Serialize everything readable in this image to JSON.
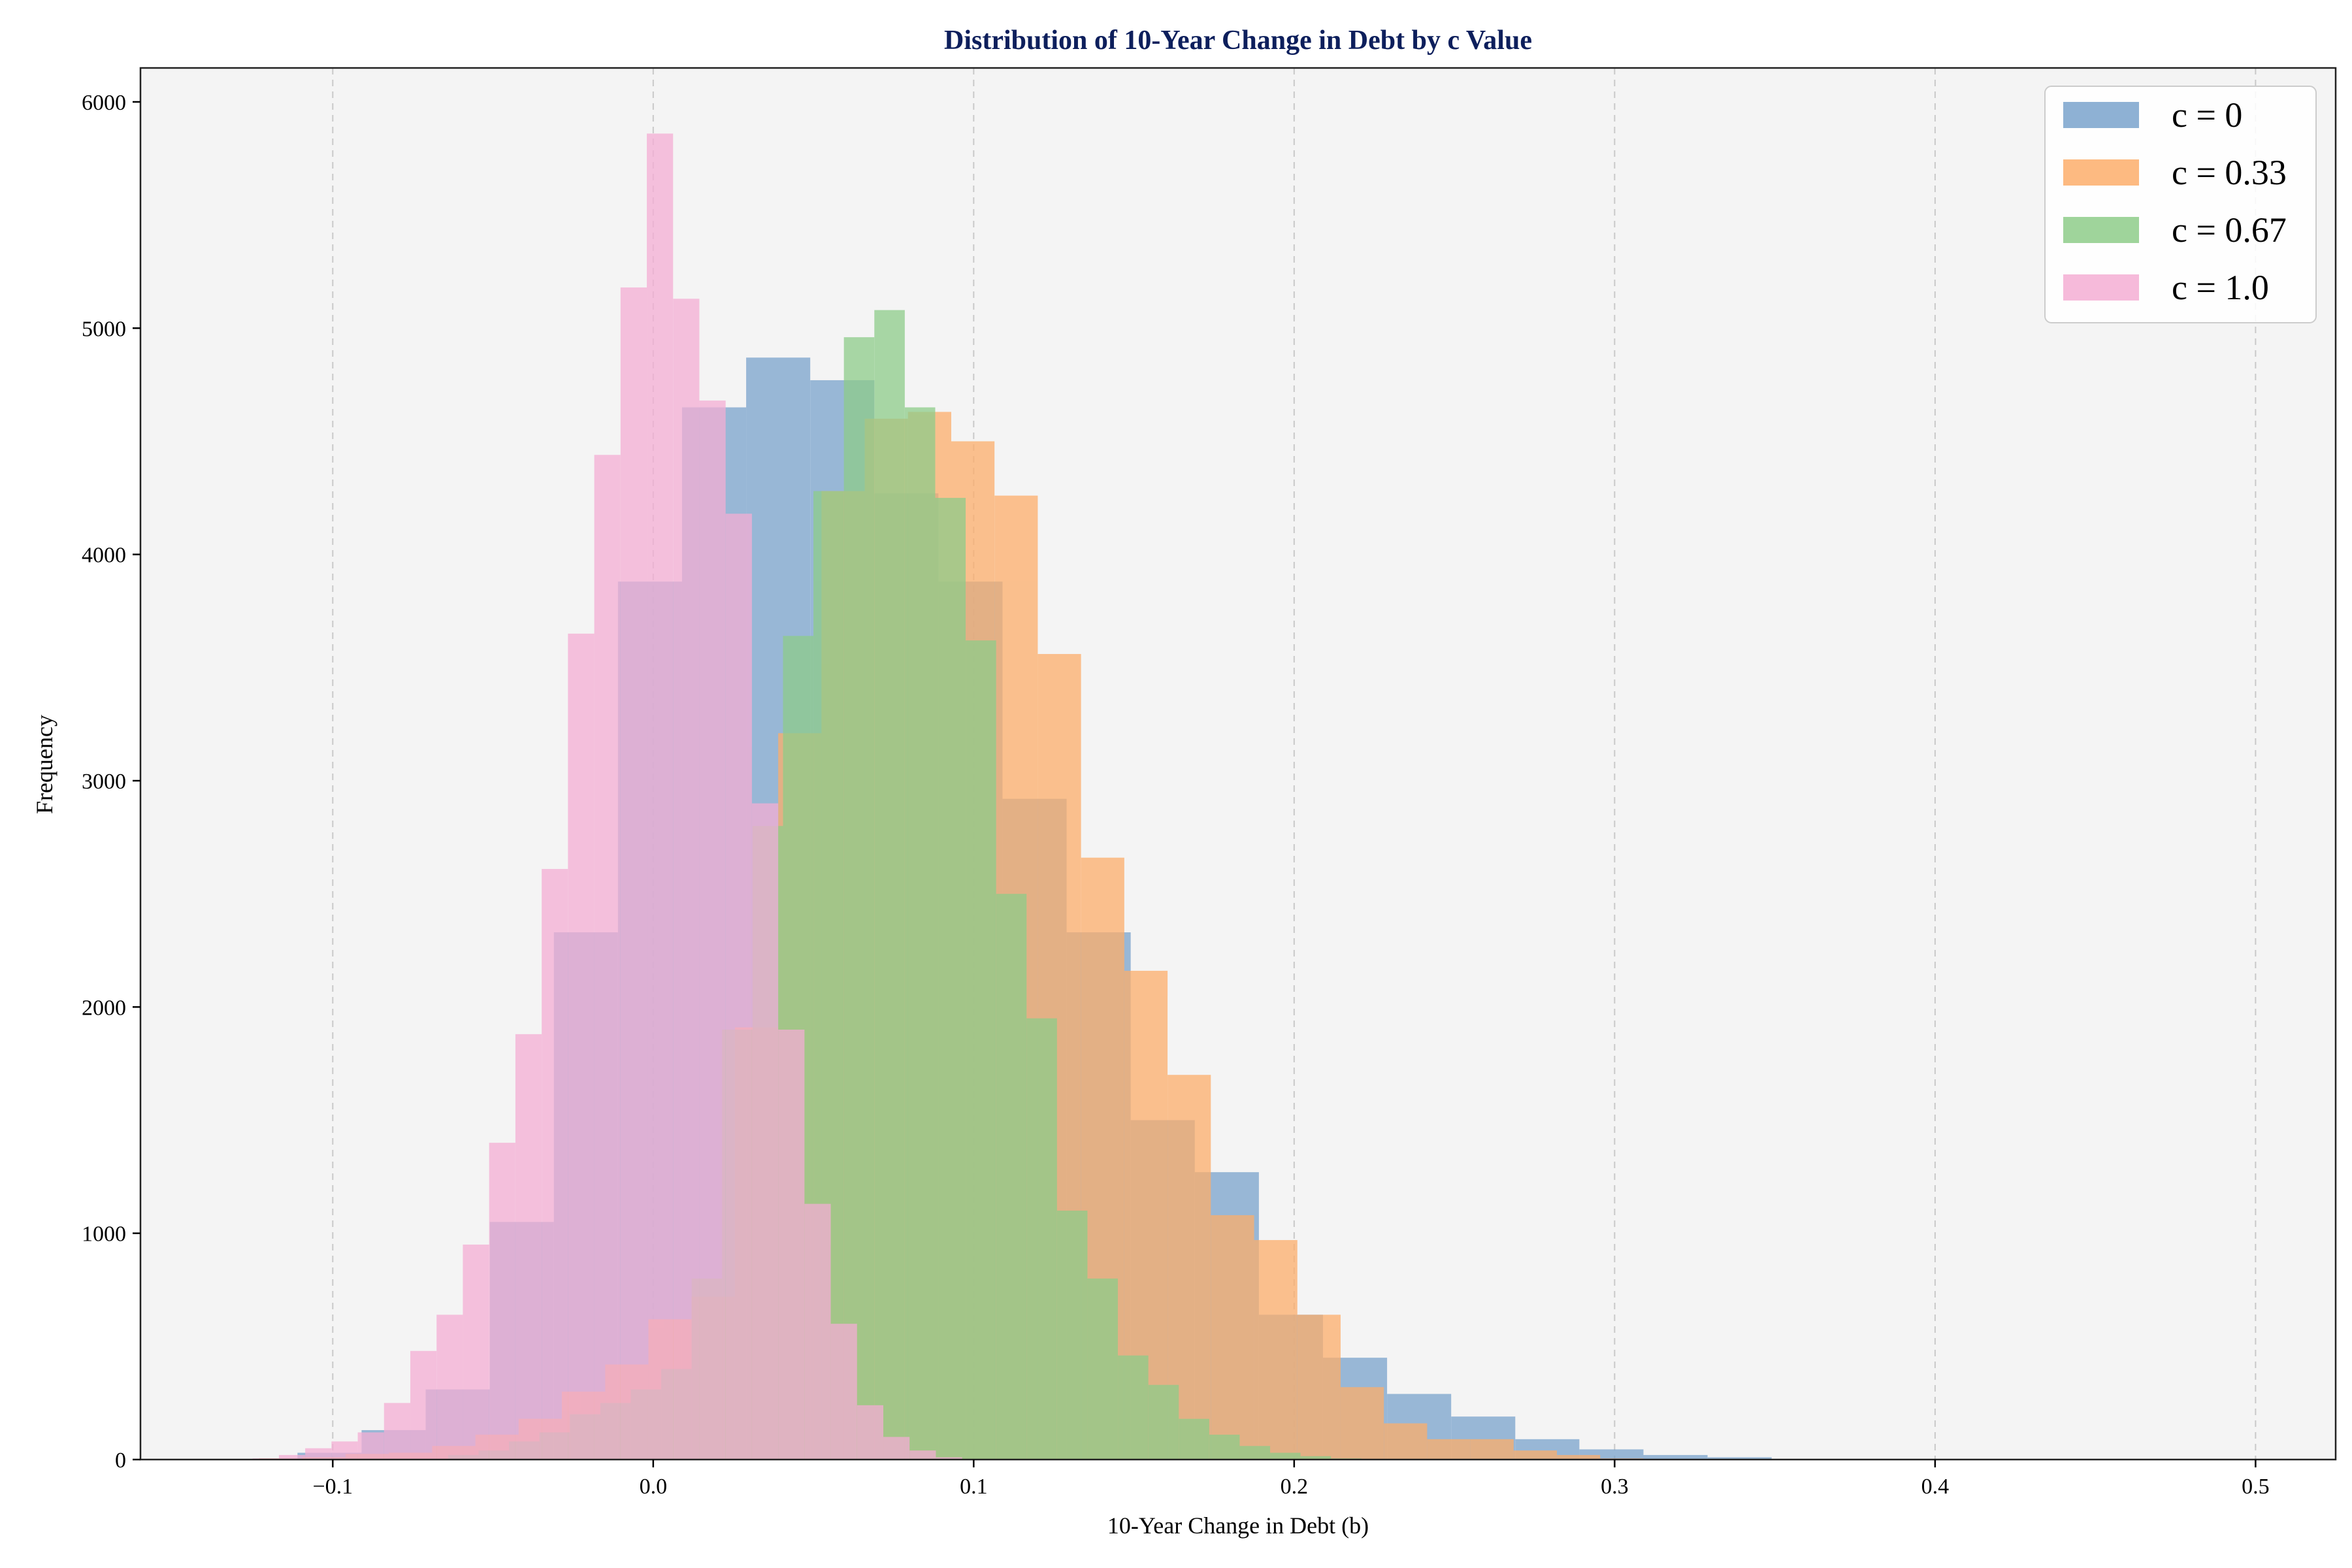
{
  "chart_data": {
    "type": "histogram",
    "title": "Distribution of 10-Year Change in Debt by c Value",
    "xlabel": "10-Year Change in Debt (b)",
    "ylabel": "Frequency",
    "xlim": [
      -0.16,
      0.525
    ],
    "ylim": [
      0,
      6150
    ],
    "xticks": [
      -0.1,
      0.0,
      0.1,
      0.2,
      0.3,
      0.4,
      0.5
    ],
    "xtick_labels": [
      "−0.1",
      "0.0",
      "0.1",
      "0.2",
      "0.3",
      "0.4",
      "0.5"
    ],
    "yticks": [
      0,
      1000,
      2000,
      3000,
      4000,
      5000,
      6000
    ],
    "ytick_labels": [
      "0",
      "1000",
      "2000",
      "3000",
      "4000",
      "5000",
      "6000"
    ],
    "grid": "vertical dashed",
    "legend_position": "top-right",
    "series": [
      {
        "name": "c = 0",
        "color": "#7aa3cc",
        "bin_start": -0.111,
        "bin_width": 0.02,
        "values": [
          30,
          130,
          310,
          1050,
          2330,
          3880,
          4650,
          4870,
          4770,
          4270,
          3880,
          2920,
          2330,
          1500,
          1270,
          640,
          450,
          290,
          190,
          90,
          45,
          20,
          10
        ]
      },
      {
        "name": "c = 0.33",
        "color": "#fdae6b",
        "bin_start": -0.123,
        "bin_width": 0.0135,
        "values": [
          5,
          10,
          25,
          30,
          60,
          110,
          180,
          300,
          420,
          620,
          720,
          1910,
          3210,
          4280,
          4600,
          4630,
          4500,
          4260,
          3560,
          2660,
          2160,
          1700,
          1080,
          970,
          640,
          320,
          160,
          90,
          90,
          40,
          20,
          5
        ]
      },
      {
        "name": "c = 0.67",
        "color": "#8ecc8a",
        "bin_start": -0.064,
        "bin_width": 0.0095,
        "values": [
          20,
          40,
          80,
          120,
          200,
          250,
          310,
          400,
          800,
          1900,
          2800,
          3640,
          4280,
          4960,
          5080,
          4650,
          4250,
          3620,
          2500,
          1950,
          1100,
          800,
          460,
          330,
          180,
          110,
          60,
          30,
          15,
          5
        ]
      },
      {
        "name": "c = 1.0",
        "color": "#f4aed4",
        "bin_start": -0.125,
        "bin_width": 0.0082,
        "values": [
          5,
          20,
          50,
          80,
          120,
          250,
          480,
          640,
          950,
          1400,
          1880,
          2610,
          3650,
          4440,
          5180,
          5860,
          5130,
          4680,
          4180,
          2900,
          1900,
          1130,
          600,
          240,
          100,
          40,
          10
        ]
      }
    ]
  }
}
